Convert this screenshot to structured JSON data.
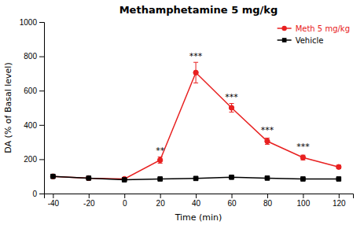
{
  "chart_data": {
    "type": "line",
    "title": "Methamphetamine 5 mg/kg",
    "xlabel": "Time (min)",
    "ylabel": "DA (% of Basal level)",
    "xlim": [
      -45,
      128
    ],
    "ylim": [
      0,
      1000
    ],
    "xticks": [
      -40,
      -20,
      0,
      20,
      40,
      60,
      80,
      100,
      120
    ],
    "yticks": [
      0,
      200,
      400,
      600,
      800,
      1000
    ],
    "x": [
      -40,
      -20,
      0,
      20,
      40,
      60,
      80,
      100,
      120
    ],
    "series": [
      {
        "name": "Meth 5 mg/kg",
        "color": "#e82020",
        "marker": "circle",
        "values": [
          100,
          90,
          85,
          195,
          705,
          500,
          305,
          210,
          155
        ],
        "errors": [
          8,
          6,
          6,
          18,
          60,
          25,
          18,
          14,
          10
        ]
      },
      {
        "name": "Vehicle",
        "color": "#000000",
        "marker": "square",
        "values": [
          100,
          90,
          80,
          85,
          88,
          95,
          90,
          85,
          85
        ],
        "errors": [
          5,
          4,
          4,
          5,
          5,
          5,
          5,
          4,
          4
        ]
      }
    ],
    "annotations": [
      {
        "text": "**",
        "x": 20,
        "y": 235
      },
      {
        "text": "***",
        "x": 40,
        "y": 785
      },
      {
        "text": "***",
        "x": 60,
        "y": 548
      },
      {
        "text": "***",
        "x": 80,
        "y": 352
      },
      {
        "text": "***",
        "x": 100,
        "y": 255
      }
    ],
    "legend": "upper right"
  }
}
